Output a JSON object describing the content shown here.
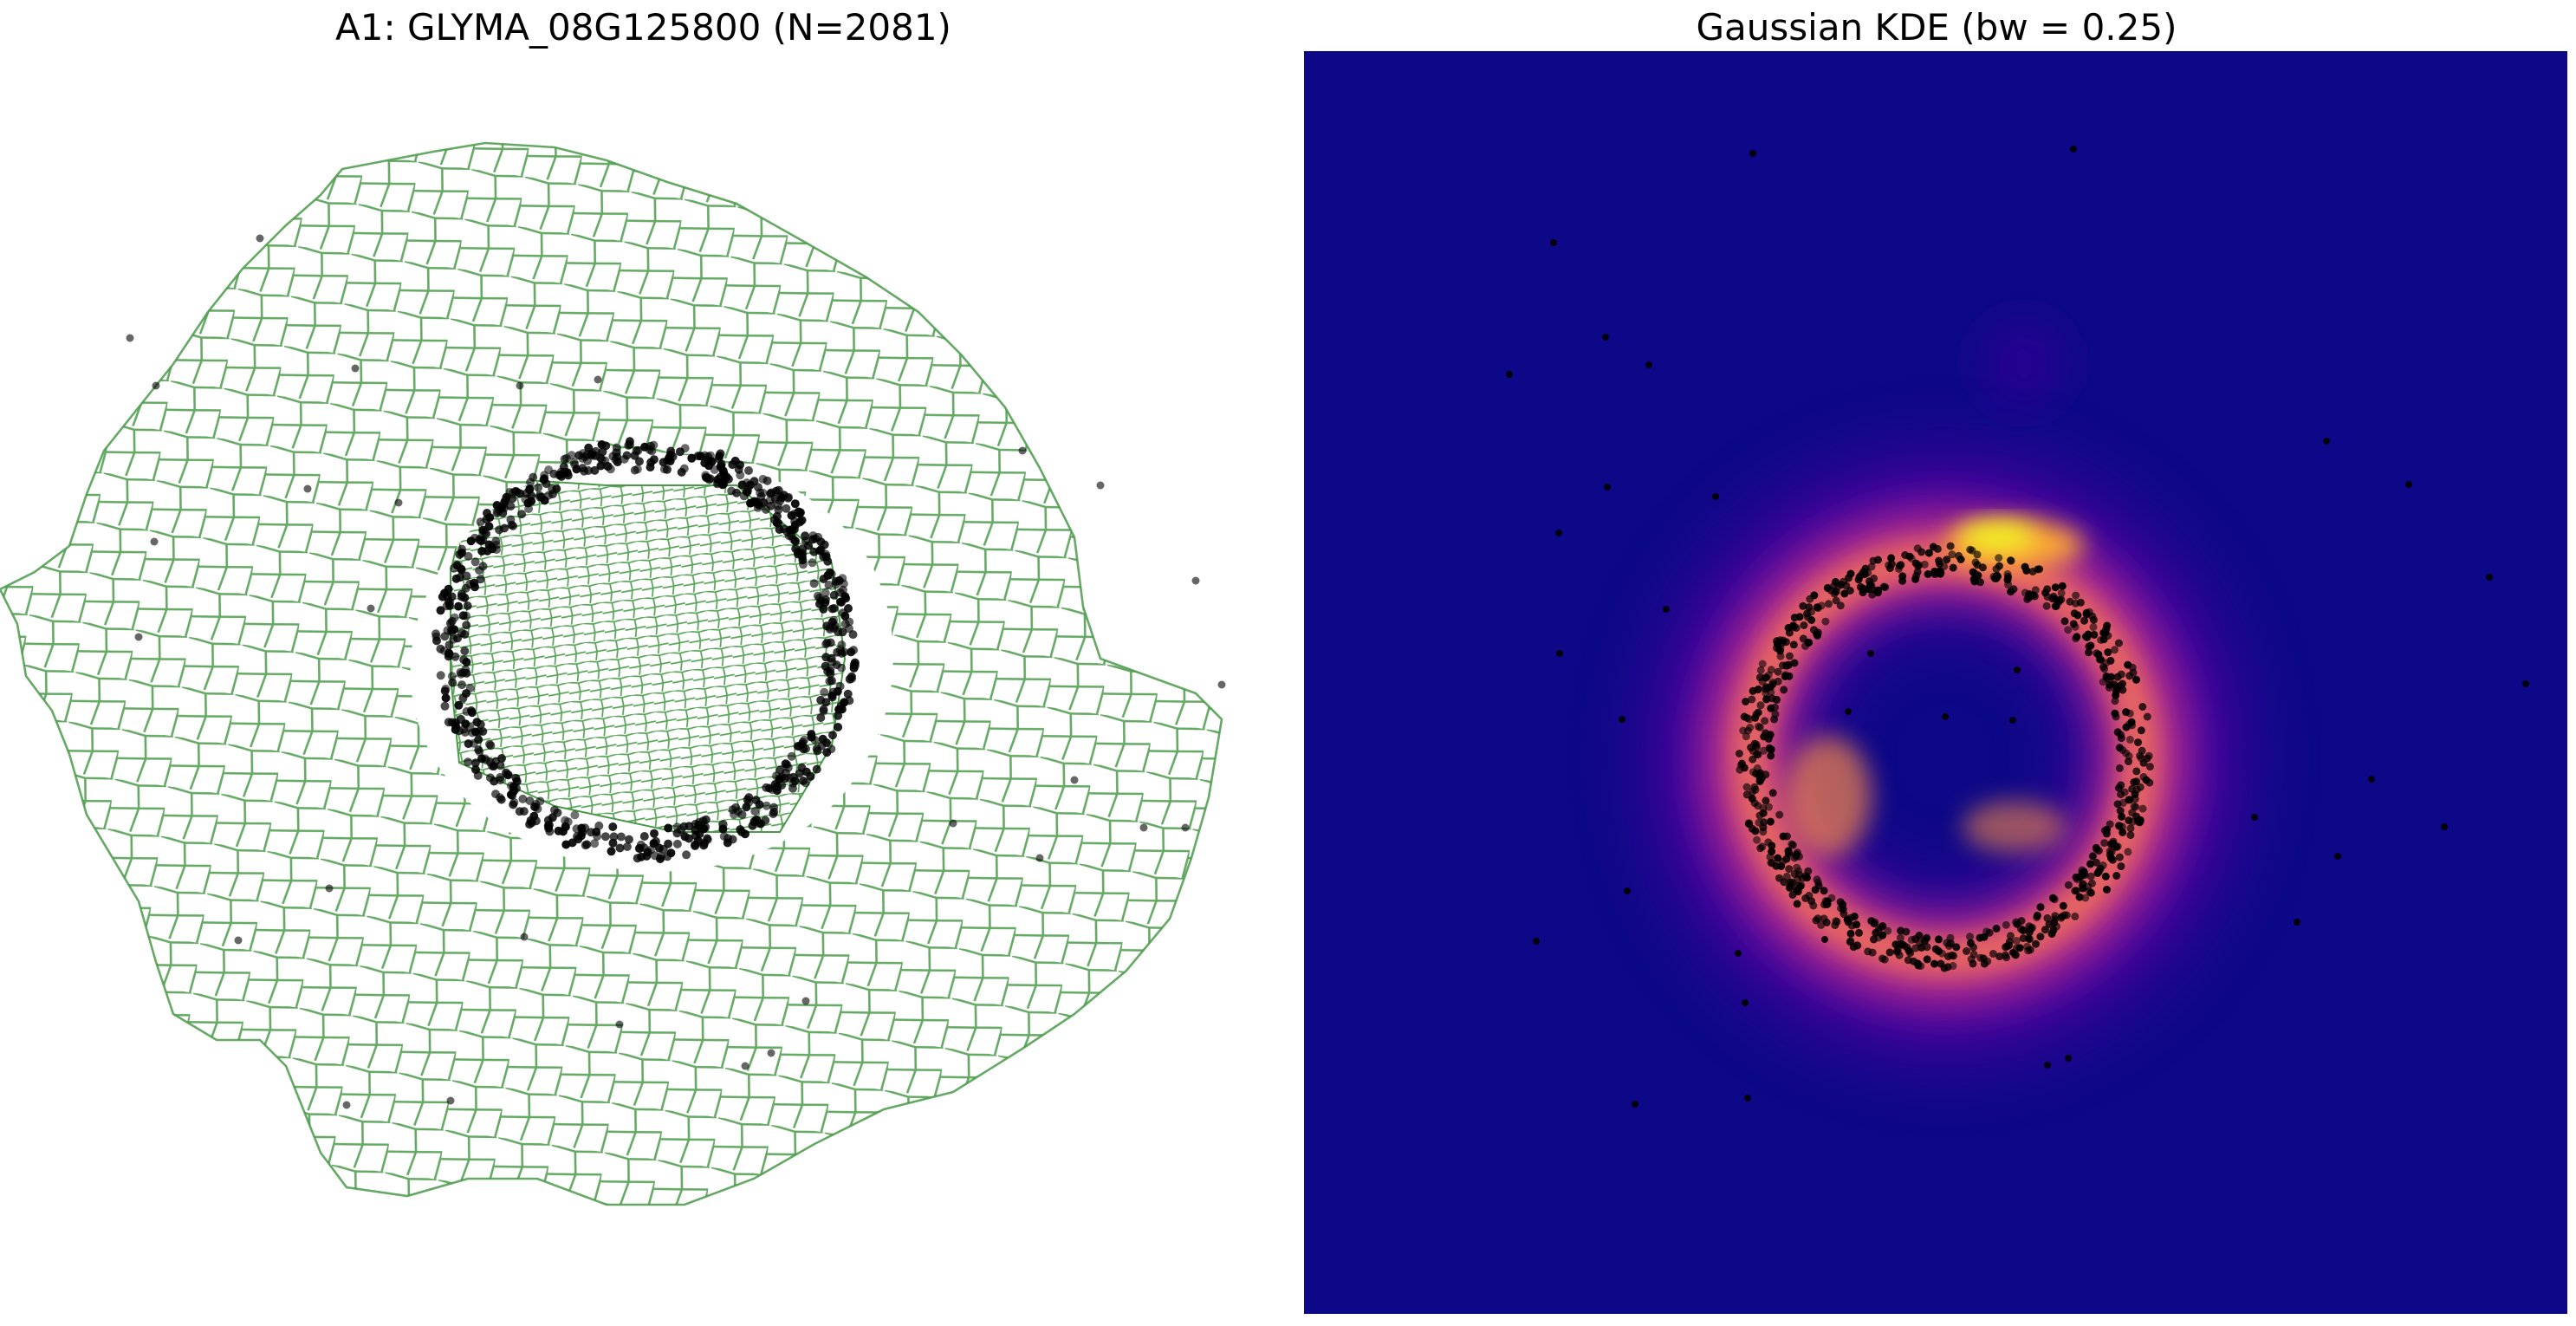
{
  "panels": {
    "left": {
      "title": "A1: GLYMA_08G125800 (N=2081)",
      "transcript_color": "#000000",
      "cell_boundary_color": "#4a9a4a"
    },
    "right": {
      "title": "Gaussian KDE (bw = 0.25)",
      "colormap": "plasma",
      "background_color": "#0d0887",
      "peak_color": "#f0f921"
    }
  }
}
